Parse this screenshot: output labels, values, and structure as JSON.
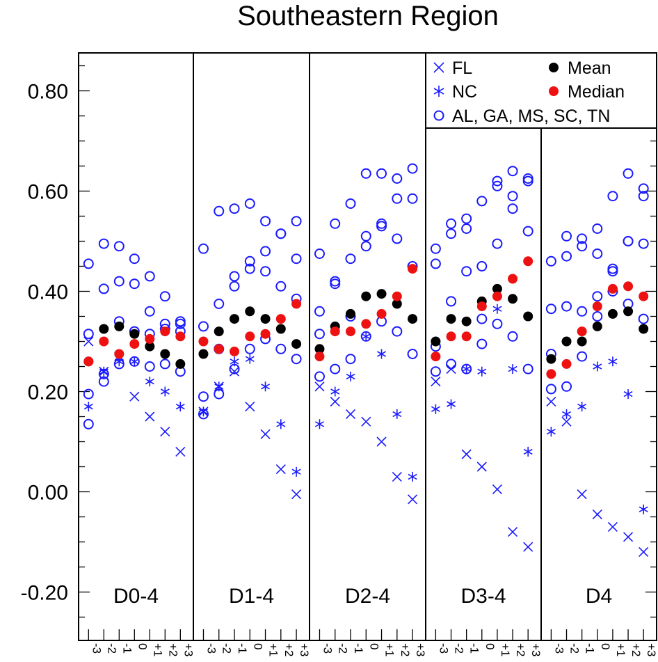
{
  "chart_data": {
    "type": "scatter",
    "title": "Southeastern Region",
    "xlabel": "",
    "ylabel": "",
    "ylim": [
      -0.3,
      0.87
    ],
    "yticks": [
      "0.80",
      "0.60",
      "0.40",
      "0.20",
      "0.00",
      "-0.20"
    ],
    "ytick_values": [
      0.8,
      0.6,
      0.4,
      0.2,
      0.0,
      -0.2
    ],
    "x_offsets": [
      "-3",
      "-2",
      "-1",
      "0",
      "+1",
      "+2",
      "+3"
    ],
    "legend": {
      "position": "top-right",
      "entries": [
        {
          "name": "FL",
          "marker": "x",
          "color": "#1a1aff"
        },
        {
          "name": "NC",
          "marker": "asterisk",
          "color": "#1a1aff"
        },
        {
          "name": "AL, GA, MS, SC, TN",
          "marker": "open-circle",
          "color": "#1a1aff"
        },
        {
          "name": "Mean",
          "marker": "filled-circle",
          "color": "#000000"
        },
        {
          "name": "Median",
          "marker": "filled-circle",
          "color": "#ee1111"
        }
      ]
    },
    "panels": [
      {
        "label": "D0-4",
        "FL": [
          0.3,
          0.24,
          0.27,
          0.19,
          0.15,
          0.12,
          0.08
        ],
        "NC": [
          0.17,
          0.24,
          0.26,
          0.26,
          0.22,
          0.2,
          0.17
        ],
        "others": [
          [
            0.455,
            0.315,
            0.195,
            0.135
          ],
          [
            0.495,
            0.405,
            0.235,
            0.22
          ],
          [
            0.49,
            0.42,
            0.34,
            0.255
          ],
          [
            0.465,
            0.415,
            0.32,
            0.26
          ],
          [
            0.43,
            0.36,
            0.315,
            0.25
          ],
          [
            0.39,
            0.335,
            0.325,
            0.255
          ],
          [
            0.34,
            0.335,
            0.32,
            0.24
          ]
        ],
        "mean": [
          0.26,
          0.325,
          0.33,
          0.315,
          0.29,
          0.275,
          0.255
        ],
        "median": [
          0.26,
          0.3,
          0.275,
          0.295,
          0.305,
          0.32,
          0.31
        ]
      },
      {
        "label": "D1-4",
        "FL": [
          0.16,
          0.21,
          0.24,
          0.17,
          0.115,
          0.045,
          -0.005
        ],
        "NC": [
          0.16,
          0.21,
          0.26,
          0.265,
          0.21,
          0.135,
          0.04
        ],
        "others": [
          [
            0.485,
            0.33,
            0.19,
            0.155
          ],
          [
            0.56,
            0.375,
            0.285,
            0.195
          ],
          [
            0.565,
            0.43,
            0.41,
            0.245
          ],
          [
            0.575,
            0.46,
            0.445,
            0.285
          ],
          [
            0.54,
            0.48,
            0.44,
            0.305
          ],
          [
            0.515,
            0.515,
            0.41,
            0.285
          ],
          [
            0.54,
            0.465,
            0.385,
            0.265
          ]
        ],
        "mean": [
          0.275,
          0.32,
          0.345,
          0.36,
          0.345,
          0.325,
          0.295
        ],
        "median": [
          0.3,
          0.285,
          0.28,
          0.31,
          0.315,
          0.345,
          0.375
        ]
      },
      {
        "label": "D2-4",
        "FL": [
          0.21,
          0.18,
          0.155,
          0.14,
          0.1,
          0.03,
          -0.015
        ],
        "NC": [
          0.135,
          0.2,
          0.23,
          0.31,
          0.275,
          0.155,
          0.03
        ],
        "others": [
          [
            0.475,
            0.36,
            0.315,
            0.23
          ],
          [
            0.535,
            0.42,
            0.415,
            0.245
          ],
          [
            0.575,
            0.465,
            0.35,
            0.265
          ],
          [
            0.635,
            0.51,
            0.49,
            0.31
          ],
          [
            0.635,
            0.535,
            0.53,
            0.34
          ],
          [
            0.625,
            0.585,
            0.505,
            0.32
          ],
          [
            0.645,
            0.585,
            0.45,
            0.275
          ]
        ],
        "mean": [
          0.285,
          0.33,
          0.355,
          0.39,
          0.395,
          0.375,
          0.345
        ],
        "median": [
          0.27,
          0.32,
          0.32,
          0.335,
          0.355,
          0.39,
          0.445
        ]
      },
      {
        "label": "D3-4",
        "FL": [
          0.22,
          0.245,
          0.075,
          0.05,
          0.005,
          -0.08,
          -0.11
        ],
        "NC": [
          0.165,
          0.175,
          0.245,
          0.24,
          0.365,
          0.245,
          0.08
        ],
        "others": [
          [
            0.485,
            0.455,
            0.29,
            0.24
          ],
          [
            0.535,
            0.515,
            0.38,
            0.255
          ],
          [
            0.545,
            0.525,
            0.44,
            0.245
          ],
          [
            0.58,
            0.45,
            0.345,
            0.295
          ],
          [
            0.62,
            0.61,
            0.495,
            0.335
          ],
          [
            0.64,
            0.59,
            0.565,
            0.31
          ],
          [
            0.625,
            0.62,
            0.52,
            0.245
          ]
        ],
        "mean": [
          0.3,
          0.345,
          0.34,
          0.38,
          0.405,
          0.385,
          0.35
        ],
        "median": [
          0.27,
          0.31,
          0.31,
          0.37,
          0.39,
          0.425,
          0.46
        ]
      },
      {
        "label": "D4",
        "FL": [
          0.18,
          0.14,
          -0.005,
          -0.045,
          -0.07,
          -0.09,
          -0.12
        ],
        "NC": [
          0.12,
          0.155,
          0.17,
          0.25,
          0.26,
          0.195,
          -0.035
        ],
        "others": [
          [
            0.46,
            0.365,
            0.275,
            0.205
          ],
          [
            0.51,
            0.47,
            0.37,
            0.21
          ],
          [
            0.505,
            0.49,
            0.36,
            0.27
          ],
          [
            0.525,
            0.475,
            0.39,
            0.35
          ],
          [
            0.59,
            0.445,
            0.44,
            0.4
          ],
          [
            0.635,
            0.5,
            0.5,
            0.375
          ],
          [
            0.605,
            0.59,
            0.495,
            0.345
          ]
        ],
        "mean": [
          0.265,
          0.3,
          0.3,
          0.33,
          0.355,
          0.36,
          0.325
        ],
        "median": [
          0.235,
          0.255,
          0.32,
          0.37,
          0.405,
          0.41,
          0.39
        ]
      }
    ]
  }
}
